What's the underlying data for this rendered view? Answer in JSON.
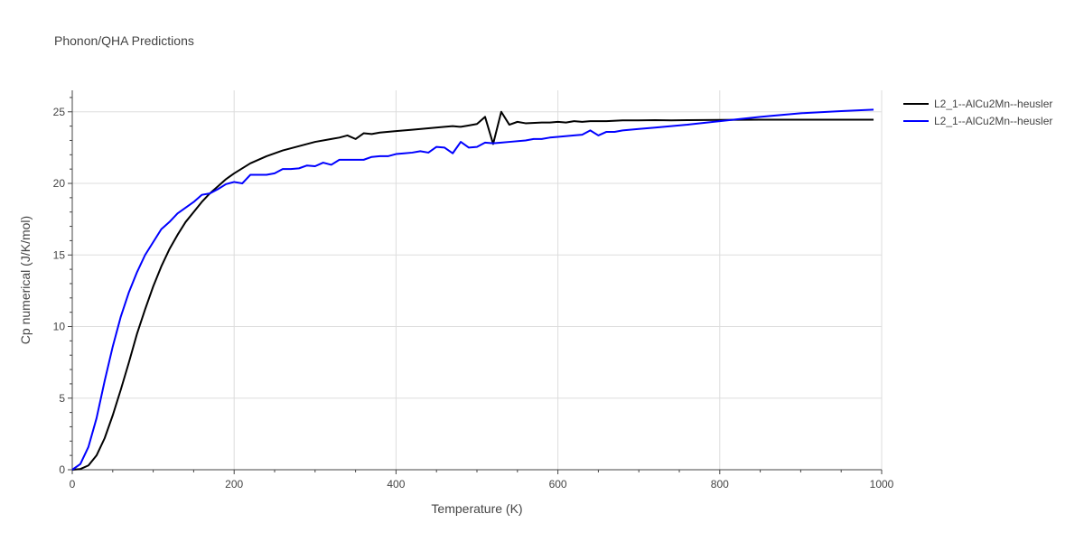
{
  "chart_data": {
    "type": "line",
    "title": "Phonon/QHA Predictions",
    "xlabel": "Temperature (K)",
    "ylabel": "Cp numerical (J/K/mol)",
    "xlim": [
      0,
      1000
    ],
    "ylim": [
      0,
      26.5
    ],
    "xticks": [
      0,
      200,
      400,
      600,
      800,
      1000
    ],
    "yticks": [
      0,
      5,
      10,
      15,
      20,
      25
    ],
    "grid": true,
    "legend_position": "top-right",
    "series": [
      {
        "name": "L2_1--AlCu2Mn--heusler",
        "color": "#000000",
        "x": [
          0,
          10,
          20,
          30,
          40,
          50,
          60,
          70,
          80,
          90,
          100,
          110,
          120,
          130,
          140,
          150,
          160,
          170,
          180,
          190,
          200,
          220,
          240,
          260,
          280,
          300,
          320,
          330,
          340,
          350,
          360,
          370,
          380,
          400,
          420,
          440,
          460,
          470,
          480,
          490,
          500,
          510,
          520,
          530,
          540,
          550,
          560,
          580,
          590,
          600,
          610,
          620,
          630,
          640,
          660,
          680,
          700,
          720,
          740,
          760,
          800,
          850,
          900,
          950,
          990
        ],
        "y": [
          0,
          0.05,
          0.3,
          1.0,
          2.2,
          3.8,
          5.6,
          7.5,
          9.5,
          11.2,
          12.8,
          14.2,
          15.4,
          16.4,
          17.3,
          18.0,
          18.7,
          19.3,
          19.8,
          20.3,
          20.7,
          21.4,
          21.9,
          22.3,
          22.6,
          22.9,
          23.1,
          23.2,
          23.35,
          23.1,
          23.5,
          23.45,
          23.55,
          23.65,
          23.75,
          23.85,
          23.95,
          24.0,
          23.95,
          24.05,
          24.15,
          24.65,
          22.75,
          25.0,
          24.1,
          24.3,
          24.2,
          24.25,
          24.25,
          24.3,
          24.25,
          24.35,
          24.3,
          24.35,
          24.35,
          24.4,
          24.4,
          24.42,
          24.4,
          24.42,
          24.43,
          24.45,
          24.45,
          24.45,
          24.45
        ]
      },
      {
        "name": "L2_1--AlCu2Mn--heusler",
        "color": "#0000ff",
        "x": [
          0,
          10,
          20,
          30,
          40,
          50,
          60,
          70,
          80,
          90,
          100,
          110,
          120,
          130,
          140,
          150,
          160,
          170,
          180,
          190,
          200,
          210,
          220,
          230,
          240,
          250,
          260,
          270,
          280,
          290,
          300,
          310,
          320,
          330,
          340,
          350,
          360,
          370,
          380,
          390,
          400,
          410,
          420,
          430,
          440,
          450,
          460,
          470,
          480,
          490,
          500,
          510,
          520,
          530,
          540,
          560,
          570,
          580,
          590,
          600,
          620,
          630,
          640,
          650,
          660,
          670,
          680,
          700,
          720,
          740,
          760,
          800,
          850,
          900,
          950,
          990
        ],
        "y": [
          0,
          0.4,
          1.6,
          3.6,
          6.2,
          8.6,
          10.7,
          12.4,
          13.8,
          15.0,
          15.9,
          16.8,
          17.3,
          17.9,
          18.3,
          18.7,
          19.2,
          19.3,
          19.6,
          19.95,
          20.1,
          20.0,
          20.6,
          20.6,
          20.6,
          20.7,
          21.0,
          21.0,
          21.05,
          21.25,
          21.2,
          21.45,
          21.3,
          21.65,
          21.65,
          21.65,
          21.65,
          21.85,
          21.9,
          21.9,
          22.05,
          22.1,
          22.15,
          22.25,
          22.15,
          22.55,
          22.5,
          22.1,
          22.9,
          22.5,
          22.55,
          22.85,
          22.8,
          22.85,
          22.9,
          23.0,
          23.1,
          23.1,
          23.2,
          23.25,
          23.35,
          23.4,
          23.7,
          23.35,
          23.6,
          23.6,
          23.7,
          23.8,
          23.9,
          24.0,
          24.1,
          24.35,
          24.65,
          24.9,
          25.05,
          25.15
        ]
      }
    ]
  }
}
